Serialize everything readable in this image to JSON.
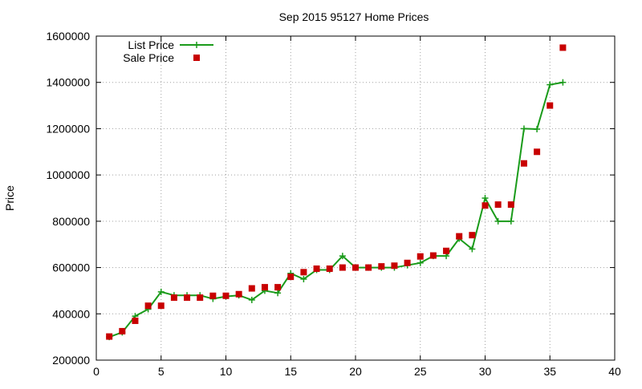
{
  "chart_data": {
    "type": "scatter",
    "title": "Sep 2015 95127 Home Prices",
    "xlabel": "",
    "ylabel": "Price",
    "xlim": [
      0,
      40
    ],
    "ylim": [
      200000,
      1600000
    ],
    "x_ticks": [
      0,
      5,
      10,
      15,
      20,
      25,
      30,
      35,
      40
    ],
    "y_ticks": [
      200000,
      400000,
      600000,
      800000,
      1000000,
      1200000,
      1400000,
      1600000
    ],
    "grid": true,
    "legend_position": "top-left",
    "series": [
      {
        "name": "List Price",
        "style": "linespoints",
        "color": "#1a9b1a",
        "x": [
          1,
          2,
          3,
          4,
          5,
          6,
          7,
          8,
          9,
          10,
          11,
          12,
          13,
          14,
          15,
          16,
          17,
          18,
          19,
          20,
          21,
          22,
          23,
          24,
          25,
          26,
          27,
          28,
          29,
          30,
          31,
          32,
          33,
          34,
          35,
          36
        ],
        "values": [
          300000,
          320000,
          390000,
          420000,
          495000,
          480000,
          480000,
          480000,
          465000,
          475000,
          480000,
          460000,
          500000,
          490000,
          575000,
          550000,
          590000,
          590000,
          650000,
          600000,
          600000,
          600000,
          600000,
          610000,
          620000,
          650000,
          650000,
          725000,
          680000,
          900000,
          800000,
          800000,
          1200000,
          1198000,
          1390000,
          1400000
        ]
      },
      {
        "name": "Sale Price",
        "style": "points",
        "color": "#c80000",
        "x": [
          1,
          2,
          3,
          4,
          5,
          6,
          7,
          8,
          9,
          10,
          11,
          12,
          13,
          14,
          15,
          16,
          17,
          18,
          19,
          20,
          21,
          22,
          23,
          24,
          25,
          26,
          27,
          28,
          29,
          30,
          31,
          32,
          33,
          34,
          35,
          36
        ],
        "values": [
          302000,
          325000,
          370000,
          435000,
          435000,
          470000,
          470000,
          470000,
          478000,
          478000,
          485000,
          510000,
          515000,
          515000,
          560000,
          580000,
          595000,
          595000,
          600000,
          600000,
          600000,
          605000,
          608000,
          620000,
          648000,
          652000,
          672000,
          735000,
          740000,
          868000,
          872000,
          872000,
          1050000,
          1100000,
          1300000,
          1550000
        ]
      }
    ]
  }
}
